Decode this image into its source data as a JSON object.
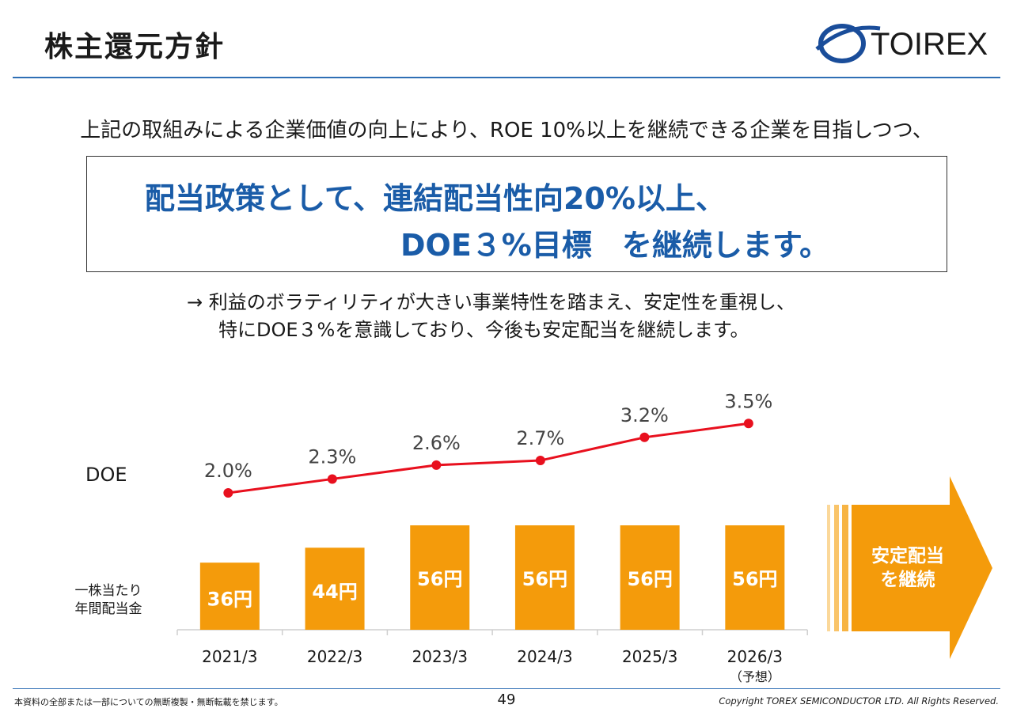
{
  "header": {
    "title": "株主還元方針",
    "logo_text": "TOIREX"
  },
  "intro": "上記の取組みによる企業価値の向上により、ROE 10%以上を継続できる企業を目指しつつ、",
  "policy": {
    "line1": "配当政策として、連結配当性向20%以上、",
    "line2": "DOE３%目標　を継続します。"
  },
  "note": {
    "line1": "→ 利益のボラティリティが大きい事業特性を踏まえ、安定性を重視し、",
    "line2": "特にDOE３%を意識しており、今後も安定配当を継続します。"
  },
  "labels": {
    "doe": "DOE",
    "dividend_line1": "一株当たり",
    "dividend_line2": "年間配当金"
  },
  "arrow": {
    "line1": "安定配当",
    "line2": "を継続"
  },
  "chart_data": {
    "type": "bar",
    "categories": [
      "2021/3",
      "2022/3",
      "2023/3",
      "2024/3",
      "2025/3",
      "2026/3"
    ],
    "category_notes": [
      "",
      "",
      "",
      "",
      "",
      "（予想）"
    ],
    "series": [
      {
        "name": "一株当たり年間配当金",
        "type": "bar",
        "values": [
          36,
          44,
          56,
          56,
          56,
          56
        ],
        "labels": [
          "36円",
          "44円",
          "56円",
          "56円",
          "56円",
          "56円"
        ]
      },
      {
        "name": "DOE",
        "type": "line",
        "values": [
          2.0,
          2.3,
          2.6,
          2.7,
          3.2,
          3.5
        ],
        "labels": [
          "2.0%",
          "2.3%",
          "2.6%",
          "2.7%",
          "3.2%",
          "3.5%"
        ]
      }
    ],
    "colors": {
      "bar": "#f49b0b",
      "line": "#e8101e",
      "label": "#444444"
    }
  },
  "footer": {
    "disclaimer": "本資料の全部または一部についての無断複製・無断転載を禁じます。",
    "page": "49",
    "copyright": "Copyright TOREX SEMICONDUCTOR LTD.  All Rights Reserved."
  }
}
